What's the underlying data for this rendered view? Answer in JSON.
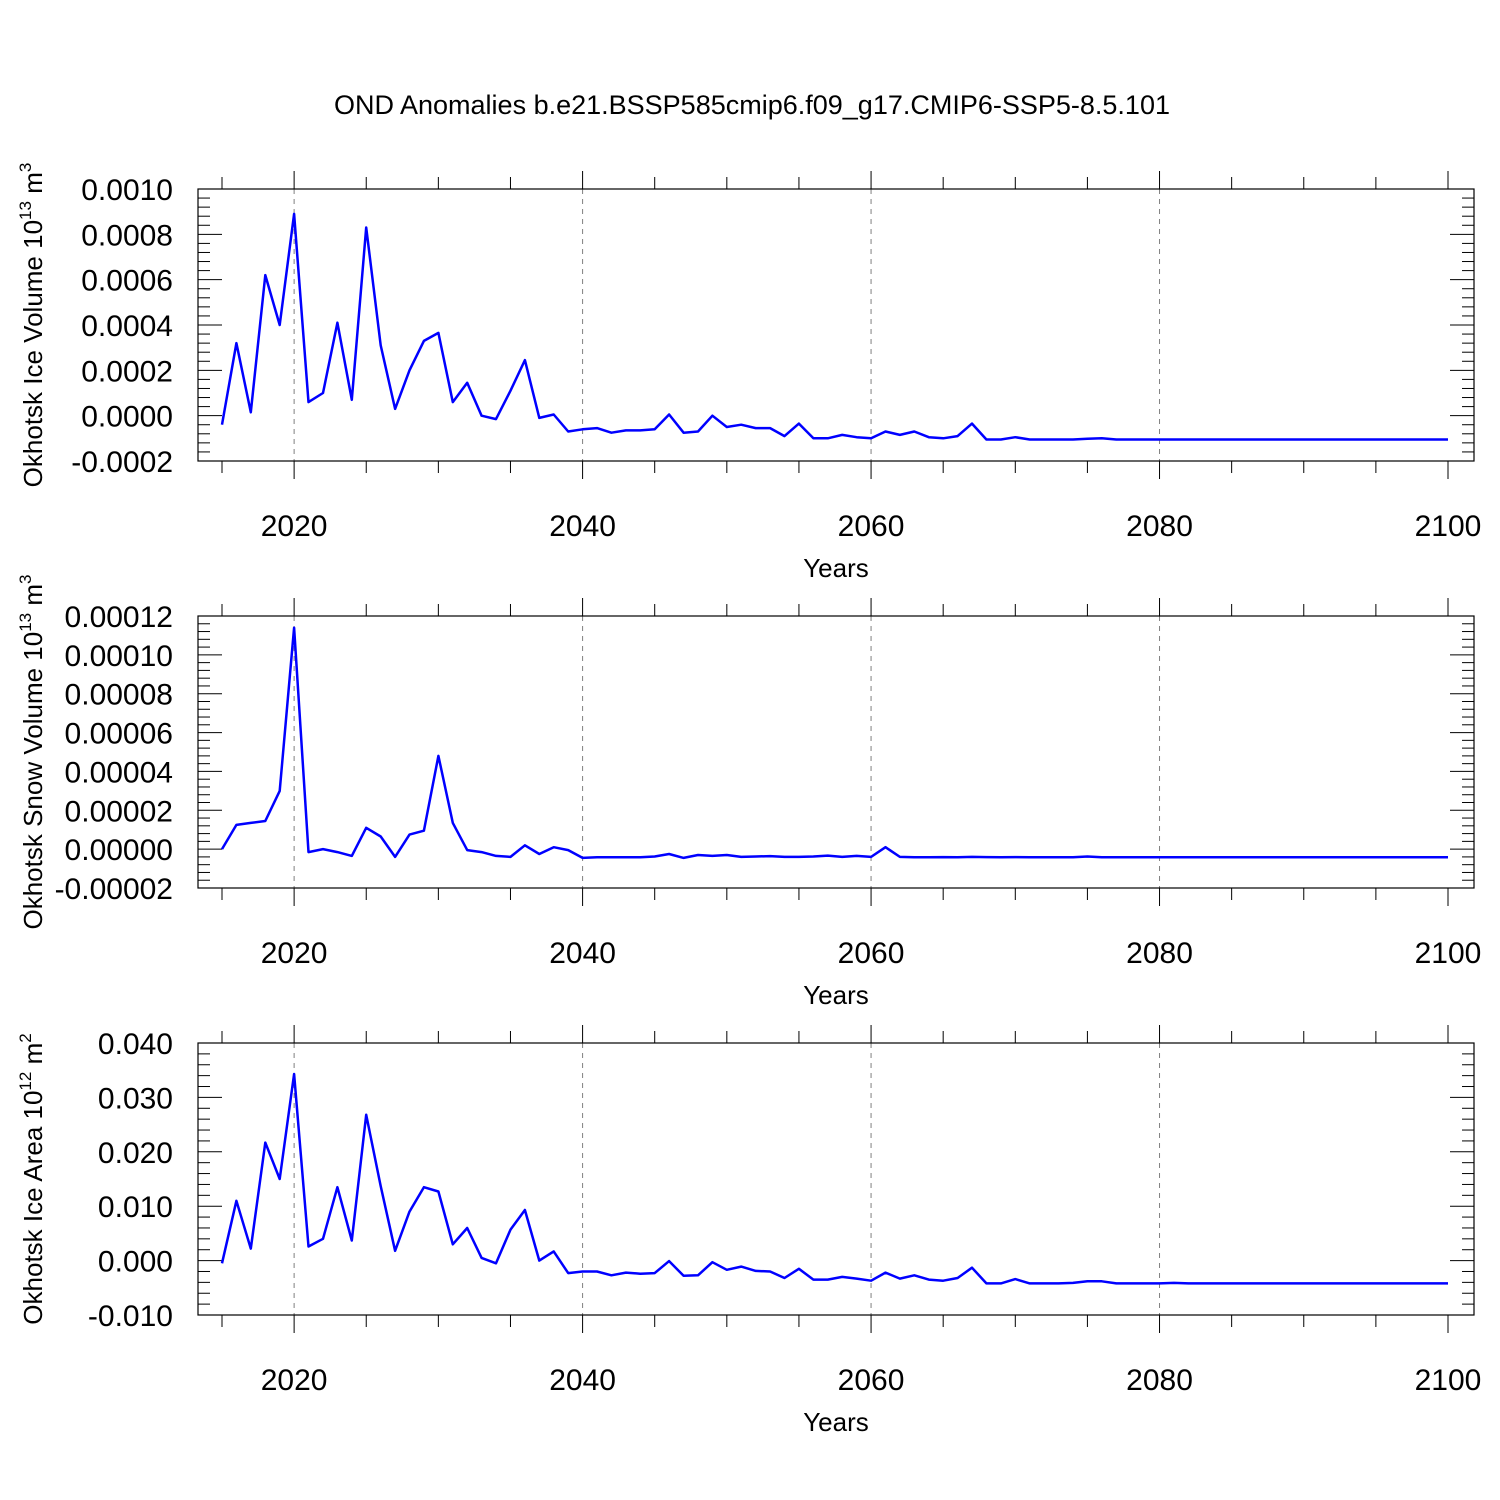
{
  "title": "OND Anomalies b.e21.BSSP585cmip6.f09_g17.CMIP6-SSP5-8.5.101",
  "colors": {
    "line": "#0000ff",
    "axis": "#000000",
    "grid": "#808080"
  },
  "chart_data": [
    {
      "type": "line",
      "ylabel": {
        "text": "Okhotsk Ice Volume 10",
        "exponent": "13",
        "unit": "m",
        "unit_exponent": "3"
      },
      "xlabel": "Years",
      "xlim": [
        2015,
        2100
      ],
      "ylim": [
        -0.0002,
        0.001
      ],
      "x_ticks": [
        "2020",
        "2040",
        "2060",
        "2080",
        "2100"
      ],
      "y_ticks": [
        "0.0010",
        "0.0008",
        "0.0006",
        "0.0004",
        "0.0002",
        "0.0000",
        "-0.0002"
      ],
      "grid": "dashed vertical lines at 2020, 2040, 2060, 2080",
      "x_start": 2015,
      "values": [
        -4e-05,
        0.00032,
        1.5e-05,
        0.00062,
        0.0004,
        0.00089,
        6e-05,
        0.0001,
        0.00041,
        7e-05,
        0.00083,
        0.00031,
        3e-05,
        0.0002,
        0.00033,
        0.000365,
        6e-05,
        0.000145,
        0.0,
        -1.5e-05,
        0.00011,
        0.000245,
        -1e-05,
        5e-06,
        -7e-05,
        -6e-05,
        -5.5e-05,
        -7.5e-05,
        -6.5e-05,
        -6.5e-05,
        -6e-05,
        5e-06,
        -7.5e-05,
        -7e-05,
        0.0,
        -5e-05,
        -4e-05,
        -5.5e-05,
        -5.5e-05,
        -9e-05,
        -3.5e-05,
        -0.0001,
        -0.0001,
        -8.5e-05,
        -9.5e-05,
        -0.0001,
        -7e-05,
        -8.5e-05,
        -7e-05,
        -9.5e-05,
        -0.0001,
        -9e-05,
        -3.5e-05,
        -0.000105,
        -0.000105,
        -9.5e-05,
        -0.000105,
        -0.000105,
        -0.000105,
        -0.000105,
        -0.000102,
        -0.0001,
        -0.000105,
        -0.000105,
        -0.000105,
        -0.000105,
        -0.000105,
        -0.000105,
        -0.000105,
        -0.000105,
        -0.000105,
        -0.000105,
        -0.000105,
        -0.000105,
        -0.000105,
        -0.000105,
        -0.000105,
        -0.000105,
        -0.000105,
        -0.000105,
        -0.000105,
        -0.000105,
        -0.000105,
        -0.000105,
        -0.000105,
        -0.000105
      ]
    },
    {
      "type": "line",
      "ylabel": {
        "text": "Okhotsk Snow Volume 10",
        "exponent": "13",
        "unit": "m",
        "unit_exponent": "3"
      },
      "xlabel": "Years",
      "xlim": [
        2015,
        2100
      ],
      "ylim": [
        -2e-05,
        0.00012
      ],
      "x_ticks": [
        "2020",
        "2040",
        "2060",
        "2080",
        "2100"
      ],
      "y_ticks": [
        "0.00012",
        "0.00010",
        "0.00008",
        "0.00006",
        "0.00004",
        "0.00002",
        "0.00000",
        "-0.00002"
      ],
      "grid": "dashed vertical lines at 2020, 2040, 2060, 2080",
      "x_start": 2015,
      "values": [
        0.0,
        1.25e-05,
        1.35e-05,
        1.45e-05,
        3e-05,
        0.000114,
        -1.5e-06,
        0.0,
        -1.5e-06,
        -3.5e-06,
        1.1e-05,
        6.5e-06,
        -4e-06,
        7.5e-06,
        9.5e-06,
        4.8e-05,
        1.35e-05,
        -5e-07,
        -1.5e-06,
        -3.5e-06,
        -4e-06,
        2e-06,
        -2.5e-06,
        1e-06,
        -5e-07,
        -4.5e-06,
        -4.2e-06,
        -4.2e-06,
        -4.2e-06,
        -4.2e-06,
        -3.8e-06,
        -2.5e-06,
        -4.5e-06,
        -3e-06,
        -3.5e-06,
        -3e-06,
        -4e-06,
        -3.8e-06,
        -3.6e-06,
        -4e-06,
        -4e-06,
        -3.8e-06,
        -3.3e-06,
        -4e-06,
        -3.5e-06,
        -4e-06,
        1e-06,
        -4e-06,
        -4.2e-06,
        -4.2e-06,
        -4.1e-06,
        -4.2e-06,
        -4e-06,
        -4.1e-06,
        -4.2e-06,
        -4.1e-06,
        -4.2e-06,
        -4.2e-06,
        -4.2e-06,
        -4.2e-06,
        -3.8e-06,
        -4.2e-06,
        -4.2e-06,
        -4.2e-06,
        -4.2e-06,
        -4.2e-06,
        -4.2e-06,
        -4.2e-06,
        -4.2e-06,
        -4.2e-06,
        -4.2e-06,
        -4.2e-06,
        -4.2e-06,
        -4.2e-06,
        -4.2e-06,
        -4.2e-06,
        -4.2e-06,
        -4.2e-06,
        -4.2e-06,
        -4.2e-06,
        -4.2e-06,
        -4.2e-06,
        -4.2e-06,
        -4.2e-06,
        -4.2e-06,
        -4.2e-06
      ]
    },
    {
      "type": "line",
      "ylabel": {
        "text": "Okhotsk Ice Area 10",
        "exponent": "12",
        "unit": "m",
        "unit_exponent": "2"
      },
      "xlabel": "Years",
      "xlim": [
        2015,
        2100
      ],
      "ylim": [
        -0.01,
        0.04
      ],
      "x_ticks": [
        "2020",
        "2040",
        "2060",
        "2080",
        "2100"
      ],
      "y_ticks": [
        "0.040",
        "0.030",
        "0.020",
        "0.010",
        "0.000",
        "-0.010"
      ],
      "grid": "dashed vertical lines at 2020, 2040, 2060, 2080",
      "x_start": 2015,
      "values": [
        -0.0005,
        0.011,
        0.0022,
        0.0217,
        0.015,
        0.0343,
        0.0026,
        0.004,
        0.0135,
        0.0037,
        0.0268,
        0.0137,
        0.0018,
        0.009,
        0.0135,
        0.0127,
        0.003,
        0.006,
        0.0005,
        -0.0005,
        0.0057,
        0.0093,
        0.0,
        0.0017,
        -0.0023,
        -0.002,
        -0.002,
        -0.0027,
        -0.0022,
        -0.0024,
        -0.0023,
        -0.0001,
        -0.0028,
        -0.0027,
        -0.0003,
        -0.0017,
        -0.0011,
        -0.0019,
        -0.002,
        -0.0032,
        -0.0015,
        -0.0035,
        -0.0035,
        -0.003,
        -0.0033,
        -0.0037,
        -0.0022,
        -0.0033,
        -0.0027,
        -0.0035,
        -0.0037,
        -0.0032,
        -0.0013,
        -0.0042,
        -0.0042,
        -0.0034,
        -0.0042,
        -0.0042,
        -0.0042,
        -0.0041,
        -0.0038,
        -0.0038,
        -0.0042,
        -0.0042,
        -0.0042,
        -0.0042,
        -0.0041,
        -0.0042,
        -0.0042,
        -0.0042,
        -0.0042,
        -0.0042,
        -0.0042,
        -0.0042,
        -0.0042,
        -0.0042,
        -0.0042,
        -0.0042,
        -0.0042,
        -0.0042,
        -0.0042,
        -0.0042,
        -0.0042,
        -0.0042,
        -0.0042,
        -0.0042
      ]
    }
  ]
}
